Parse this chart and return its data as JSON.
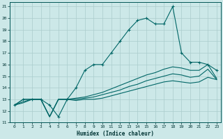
{
  "xlabel": "Humidex (Indice chaleur)",
  "xlim": [
    -0.5,
    23.5
  ],
  "ylim": [
    11,
    21.4
  ],
  "xticks": [
    0,
    1,
    2,
    3,
    4,
    5,
    6,
    7,
    8,
    9,
    10,
    11,
    12,
    13,
    14,
    15,
    16,
    17,
    18,
    19,
    20,
    21,
    22,
    23
  ],
  "yticks": [
    11,
    12,
    13,
    14,
    15,
    16,
    17,
    18,
    19,
    20,
    21
  ],
  "background_color": "#cce8e8",
  "grid_color": "#aacccc",
  "line_color": "#006666",
  "line1_x": [
    0,
    1,
    2,
    3,
    4,
    5,
    6,
    7,
    8,
    9,
    10,
    11,
    12,
    13,
    14,
    15,
    16,
    17,
    18,
    19,
    20,
    21,
    22,
    23
  ],
  "line1_y": [
    12.5,
    13.0,
    13.0,
    13.0,
    12.5,
    11.5,
    13.0,
    14.0,
    15.5,
    16.0,
    16.0,
    17.0,
    18.0,
    19.0,
    19.8,
    20.0,
    19.5,
    19.5,
    21.0,
    17.0,
    16.2,
    16.2,
    16.0,
    15.5
  ],
  "line2_x": [
    0,
    1,
    2,
    3,
    4,
    5,
    6,
    7,
    8,
    9,
    10,
    11,
    12,
    13,
    14,
    15,
    16,
    17,
    18,
    19,
    20,
    21,
    22,
    23
  ],
  "line2_y": [
    12.5,
    13.0,
    13.0,
    13.0,
    11.5,
    13.0,
    13.0,
    13.1,
    13.2,
    13.4,
    13.6,
    13.9,
    14.2,
    14.5,
    14.8,
    15.1,
    15.3,
    15.6,
    15.8,
    15.7,
    15.5,
    15.5,
    16.0,
    14.8
  ],
  "line3_x": [
    0,
    1,
    2,
    3,
    4,
    5,
    6,
    7,
    8,
    9,
    10,
    11,
    12,
    13,
    14,
    15,
    16,
    17,
    18,
    19,
    20,
    21,
    22,
    23
  ],
  "line3_y": [
    12.5,
    12.8,
    13.0,
    13.0,
    11.5,
    13.0,
    13.0,
    13.0,
    13.1,
    13.2,
    13.4,
    13.6,
    13.8,
    14.1,
    14.3,
    14.6,
    14.8,
    15.0,
    15.2,
    15.1,
    14.9,
    15.0,
    15.6,
    14.7
  ],
  "line4_x": [
    0,
    1,
    2,
    3,
    4,
    5,
    6,
    7,
    8,
    9,
    10,
    11,
    12,
    13,
    14,
    15,
    16,
    17,
    18,
    19,
    20,
    21,
    22,
    23
  ],
  "line4_y": [
    12.5,
    12.7,
    13.0,
    13.0,
    11.5,
    13.0,
    13.0,
    12.9,
    13.0,
    13.0,
    13.1,
    13.3,
    13.5,
    13.7,
    13.9,
    14.1,
    14.3,
    14.5,
    14.6,
    14.5,
    14.4,
    14.5,
    14.9,
    14.7
  ]
}
